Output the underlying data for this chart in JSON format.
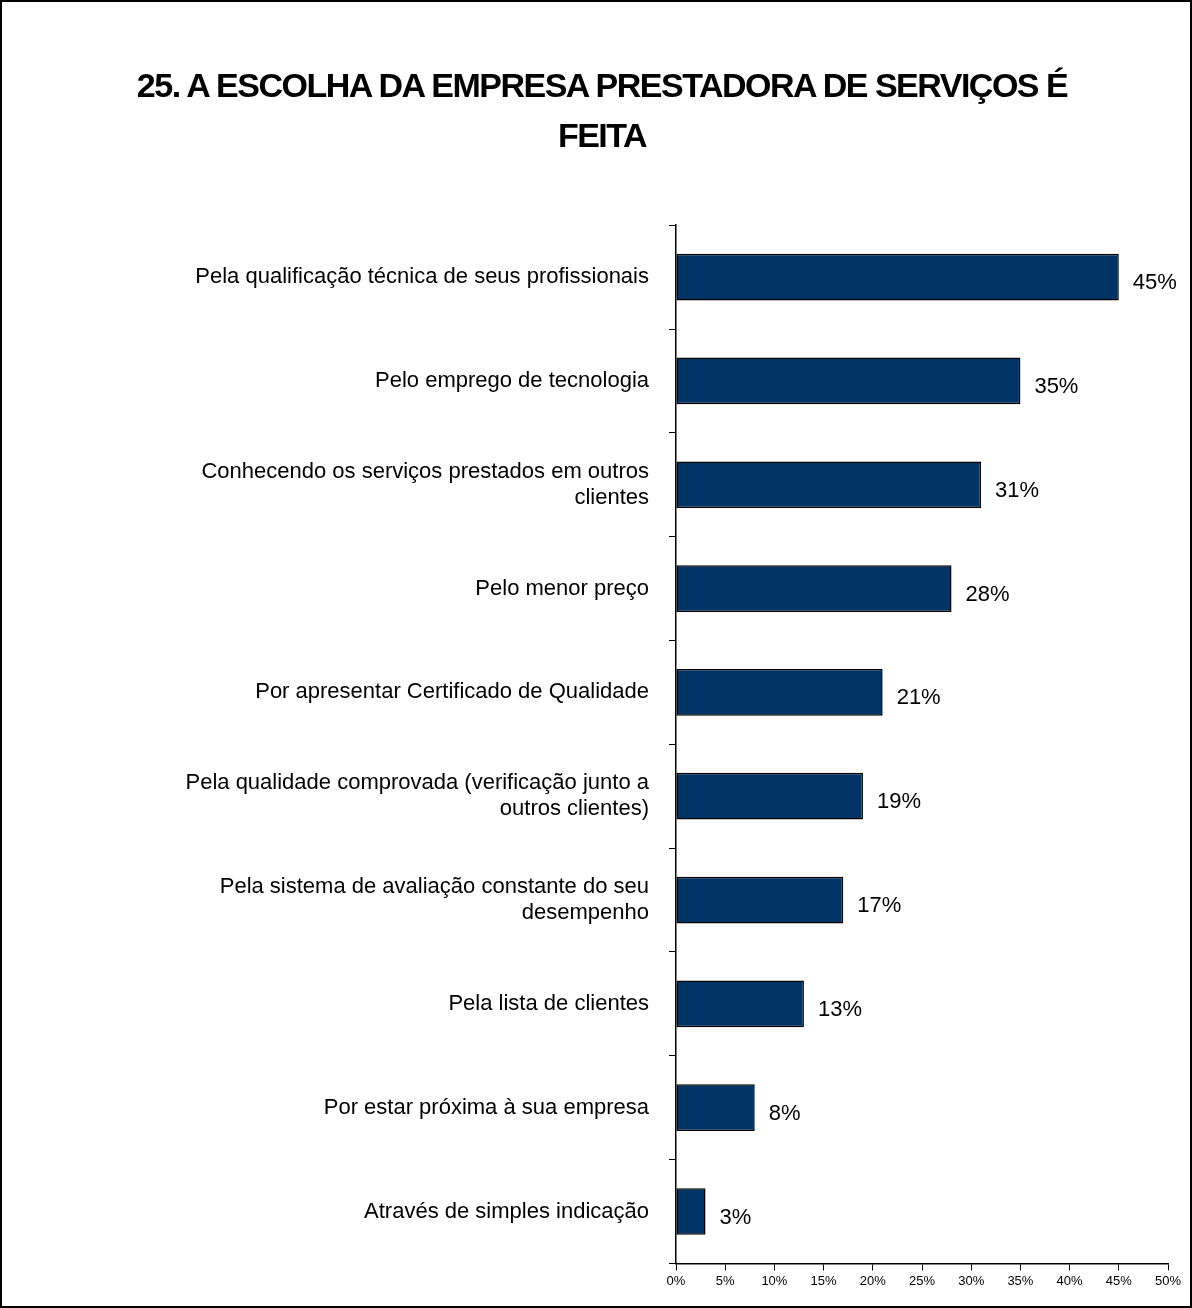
{
  "chart_data": {
    "type": "bar",
    "orientation": "horizontal",
    "title": "25. A ESCOLHA DA EMPRESA PRESTADORA DE SERVIÇOS É FEITA",
    "categories": [
      "Pela qualificação técnica de seus profissionais",
      "Pelo emprego de tecnologia",
      "Conhecendo os serviços prestados em outros clientes",
      "Pelo menor preço",
      "Por apresentar Certificado de Qualidade",
      "Pela qualidade comprovada (verificação junto a outros clientes)",
      "Pela sistema de avaliação constante do seu desempenho",
      "Pela lista de clientes",
      "Por estar próxima à sua empresa",
      "Através de simples indicação"
    ],
    "values": [
      45,
      35,
      31,
      28,
      21,
      19,
      17,
      13,
      8,
      3
    ],
    "value_labels": [
      "45%",
      "35%",
      "31%",
      "28%",
      "21%",
      "19%",
      "17%",
      "13%",
      "8%",
      "3%"
    ],
    "color": "#003366",
    "xlim": [
      0,
      50
    ],
    "xticks": [
      {
        "value": 0,
        "label": "0%"
      },
      {
        "value": 5,
        "label": "5%"
      },
      {
        "value": 10,
        "label": "10%"
      },
      {
        "value": 15,
        "label": "15%"
      },
      {
        "value": 20,
        "label": "20%"
      },
      {
        "value": 25,
        "label": "25%"
      },
      {
        "value": 30,
        "label": "30%"
      },
      {
        "value": 35,
        "label": "35%"
      },
      {
        "value": 40,
        "label": "40%"
      },
      {
        "value": 45,
        "label": "45%"
      },
      {
        "value": 50,
        "label": "50%"
      }
    ],
    "grid": false,
    "legend": false
  }
}
